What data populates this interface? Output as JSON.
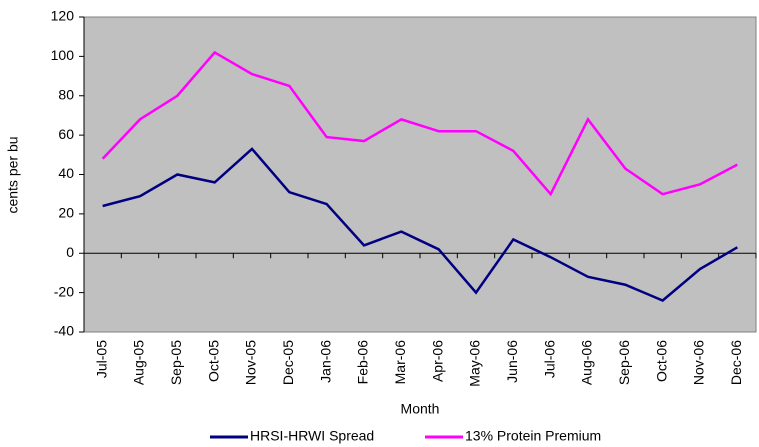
{
  "chart_data": {
    "type": "line",
    "x_label": "Month",
    "y_label": "cents per bu",
    "categories": [
      "Jul-05",
      "Aug-05",
      "Sep-05",
      "Oct-05",
      "Nov-05",
      "Dec-05",
      "Jan-06",
      "Feb-06",
      "Mar-06",
      "Apr-06",
      "May-06",
      "Jun-06",
      "Jul-06",
      "Aug-06",
      "Sep-06",
      "Oct-06",
      "Nov-06",
      "Dec-06"
    ],
    "series": [
      {
        "name": "HRSI-HRWI Spread",
        "color": "#000080",
        "values": [
          24,
          29,
          40,
          36,
          53,
          31,
          25,
          4,
          11,
          2,
          -20,
          7,
          -2,
          -12,
          -16,
          -24,
          -8,
          3
        ]
      },
      {
        "name": "13% Protein Premium",
        "color": "#ff00ff",
        "values": [
          48,
          68,
          80,
          102,
          91,
          85,
          59,
          57,
          68,
          62,
          62,
          52,
          30,
          68,
          43,
          30,
          35,
          45
        ]
      }
    ],
    "ylim": [
      -40,
      120
    ],
    "yticks": [
      -40,
      -20,
      0,
      20,
      40,
      60,
      80,
      100,
      120
    ],
    "grid": false,
    "legend": "bottom",
    "plot_background": "#c0c0c0"
  }
}
